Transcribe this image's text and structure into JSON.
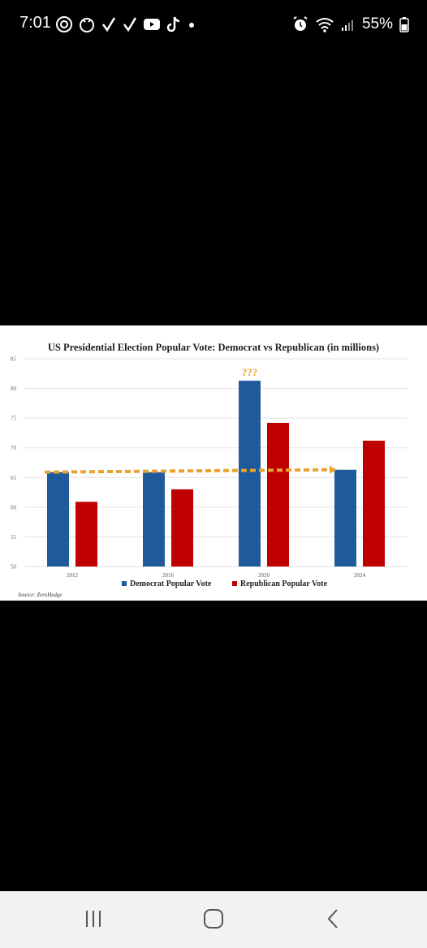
{
  "status_bar": {
    "time": "7:01",
    "battery": "55%",
    "left_icons": [
      "threads-icon",
      "chicken-app-icon",
      "check-icon",
      "check-icon",
      "youtube-icon",
      "tiktok-icon",
      "dot-icon"
    ],
    "right_icons": [
      "alarm-icon",
      "wifi-icon",
      "signal-icon",
      "battery-icon"
    ]
  },
  "chart_data": {
    "type": "bar",
    "title": "US Presidential Election Popular Vote: Democrat vs Republican (in millions)",
    "categories": [
      "2012",
      "2016",
      "2020",
      "2024"
    ],
    "series": [
      {
        "name": "Democrat Popular Vote",
        "values": [
          65.9,
          65.9,
          81.3,
          66.3
        ],
        "color": "#1f5a9c"
      },
      {
        "name": "Republican Popular Vote",
        "values": [
          60.9,
          63.0,
          74.2,
          71.2
        ],
        "color": "#c00000"
      }
    ],
    "ylim": [
      50,
      85
    ],
    "yticks": [
      "50",
      "55",
      "60",
      "65",
      "70",
      "75",
      "80",
      "85"
    ],
    "trend_line": {
      "from_value": 65.9,
      "to_value": 66.3,
      "color": "#e8a430",
      "style": "dashed-arrow"
    },
    "annotation": "???",
    "annotation_color": "#e8a430",
    "source": "Source: ZeroHedge",
    "legend_position": "bottom-center",
    "grid": true
  },
  "nav_bar": {
    "buttons": [
      "recents-button",
      "home-button",
      "back-button"
    ]
  }
}
